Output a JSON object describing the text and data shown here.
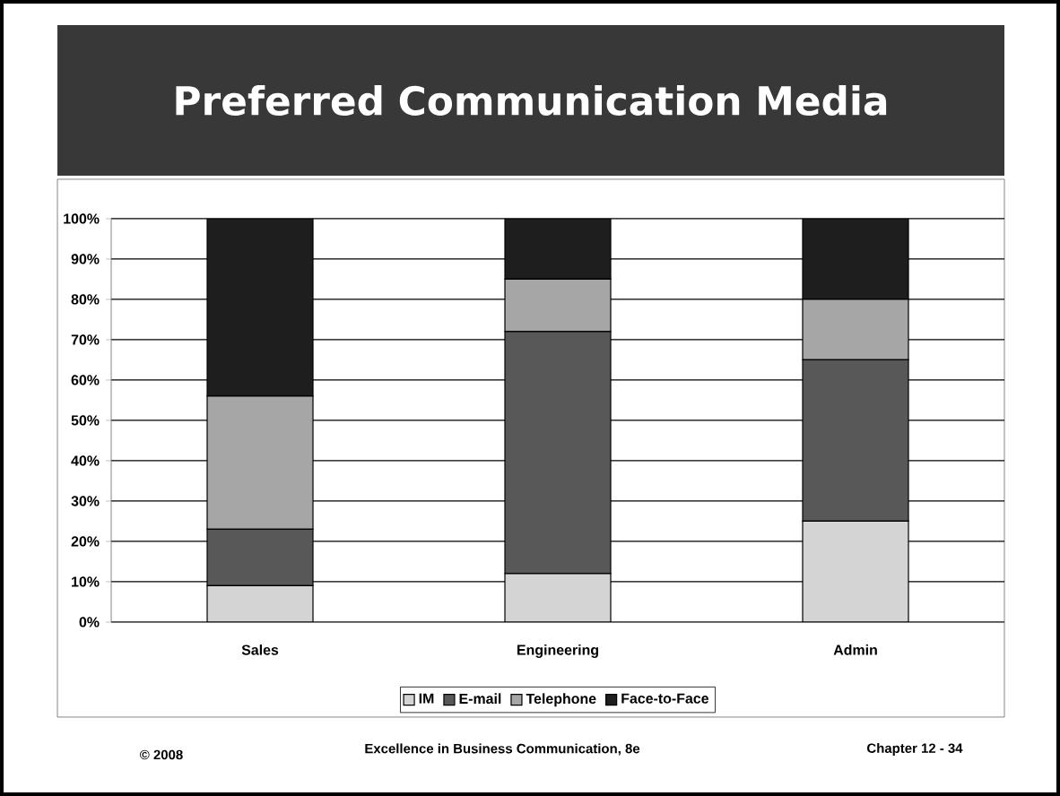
{
  "chart_data": {
    "type": "bar",
    "stacked": true,
    "title": "Preferred Communication Media",
    "categories": [
      "Sales",
      "Engineering",
      "Admin"
    ],
    "series": [
      {
        "name": "IM",
        "color": "#d4d4d4",
        "values": [
          9,
          12,
          25
        ]
      },
      {
        "name": "E-mail",
        "color": "#585858",
        "values": [
          14,
          60,
          40
        ]
      },
      {
        "name": "Telephone",
        "color": "#a6a6a6",
        "values": [
          33,
          13,
          15
        ]
      },
      {
        "name": "Face-to-Face",
        "color": "#1e1e1e",
        "values": [
          44,
          15,
          20
        ]
      }
    ],
    "ylim": [
      0,
      100
    ],
    "yticks": [
      {
        "value": 0,
        "label": "0%"
      },
      {
        "value": 10,
        "label": "10%"
      },
      {
        "value": 20,
        "label": "20%"
      },
      {
        "value": 30,
        "label": "30%"
      },
      {
        "value": 40,
        "label": "40%"
      },
      {
        "value": 50,
        "label": "50%"
      },
      {
        "value": 60,
        "label": "60%"
      },
      {
        "value": 70,
        "label": "70%"
      },
      {
        "value": 80,
        "label": "80%"
      },
      {
        "value": 90,
        "label": "90%"
      },
      {
        "value": 100,
        "label": "100%"
      }
    ],
    "grid": "y",
    "legend": "bottom",
    "annotations": [
      "© 2008",
      "Excellence in Business Communication, 8e",
      "Chapter 12 - 34"
    ]
  }
}
